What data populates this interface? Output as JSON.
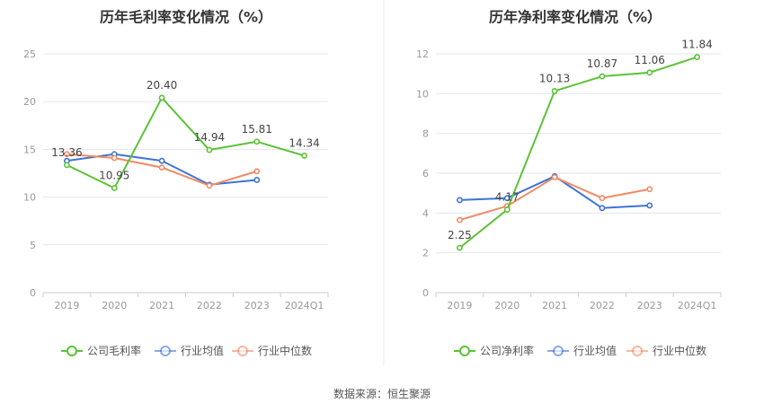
{
  "chart_data": [
    {
      "type": "line",
      "title": "历年毛利率变化情况（%）",
      "categories": [
        "2019",
        "2020",
        "2021",
        "2022",
        "2023",
        "2024Q1"
      ],
      "ylim": [
        0,
        25
      ],
      "yticks": [
        0,
        5,
        10,
        15,
        20,
        25
      ],
      "grid": true,
      "legend_position": "bottom",
      "series": [
        {
          "name": "公司毛利率",
          "color": "#5bc236",
          "values": [
            13.36,
            10.95,
            20.4,
            14.94,
            15.81,
            14.34
          ],
          "labels": [
            "13.36",
            "10.95",
            "20.40",
            "14.94",
            "15.81",
            "14.34"
          ]
        },
        {
          "name": "行业均值",
          "color": "#3f73d6",
          "values": [
            13.8,
            14.5,
            13.8,
            11.3,
            11.8,
            null
          ]
        },
        {
          "name": "行业中位数",
          "color": "#f08a63",
          "values": [
            14.5,
            14.1,
            13.1,
            11.2,
            12.7,
            null
          ]
        }
      ]
    },
    {
      "type": "line",
      "title": "历年净利率变化情况（%）",
      "categories": [
        "2019",
        "2020",
        "2021",
        "2022",
        "2023",
        "2024Q1"
      ],
      "ylim": [
        0,
        12
      ],
      "yticks": [
        0,
        2,
        4,
        6,
        8,
        10,
        12
      ],
      "grid": true,
      "legend_position": "bottom",
      "series": [
        {
          "name": "公司净利率",
          "color": "#5bc236",
          "values": [
            2.25,
            4.17,
            10.13,
            10.87,
            11.06,
            11.84
          ],
          "labels": [
            "2.25",
            "4.17",
            "10.13",
            "10.87",
            "11.06",
            "11.84"
          ]
        },
        {
          "name": "行业均值",
          "color": "#3f73d6",
          "values": [
            4.65,
            4.75,
            5.85,
            4.25,
            4.38,
            null
          ]
        },
        {
          "name": "行业中位数",
          "color": "#f08a63",
          "values": [
            3.65,
            4.35,
            5.8,
            4.75,
            5.2,
            null
          ]
        }
      ]
    }
  ],
  "source_text": "数据来源：恒生聚源"
}
